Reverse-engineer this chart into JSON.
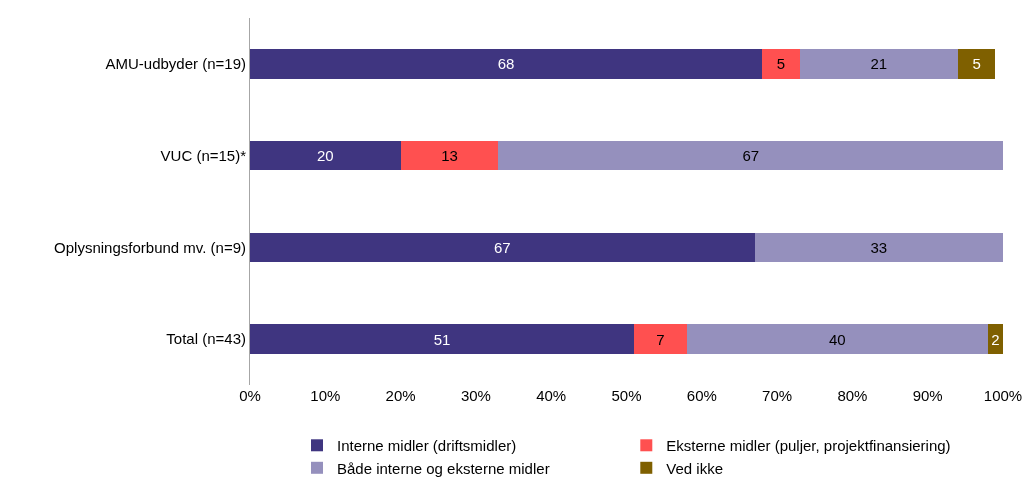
{
  "chart_data": {
    "type": "bar",
    "orientation": "horizontal",
    "stacked": true,
    "data_labels": true,
    "legend": "bottom",
    "grid": false,
    "categories": [
      "AMU-udbyder (n=19)",
      "VUC (n=15)*",
      "Oplysningsforbund mv. (n=9)",
      "Total (n=43)"
    ],
    "series": [
      {
        "name": "Interne midler (driftsmidler)",
        "color": "#3f3580",
        "values": [
          68,
          20,
          67,
          51
        ]
      },
      {
        "name": "Eksterne midler (puljer, projektfinansiering)",
        "color": "#ff5050",
        "values": [
          5,
          13,
          null,
          7
        ]
      },
      {
        "name": "Både interne og eksterne midler",
        "color": "#9590bd",
        "values": [
          21,
          67,
          33,
          40
        ]
      },
      {
        "name": "Ved ikke",
        "color": "#7f6000",
        "values": [
          5,
          null,
          null,
          2
        ]
      }
    ],
    "xlim": [
      0,
      100
    ],
    "xticks": [
      {
        "value": 0,
        "label": "0%"
      },
      {
        "value": 10,
        "label": "10%"
      },
      {
        "value": 20,
        "label": "20%"
      },
      {
        "value": 30,
        "label": "30%"
      },
      {
        "value": 40,
        "label": "40%"
      },
      {
        "value": 50,
        "label": "50%"
      },
      {
        "value": 60,
        "label": "60%"
      },
      {
        "value": 70,
        "label": "70%"
      },
      {
        "value": 80,
        "label": "80%"
      },
      {
        "value": 90,
        "label": "90%"
      },
      {
        "value": 100,
        "label": "100%"
      }
    ]
  }
}
